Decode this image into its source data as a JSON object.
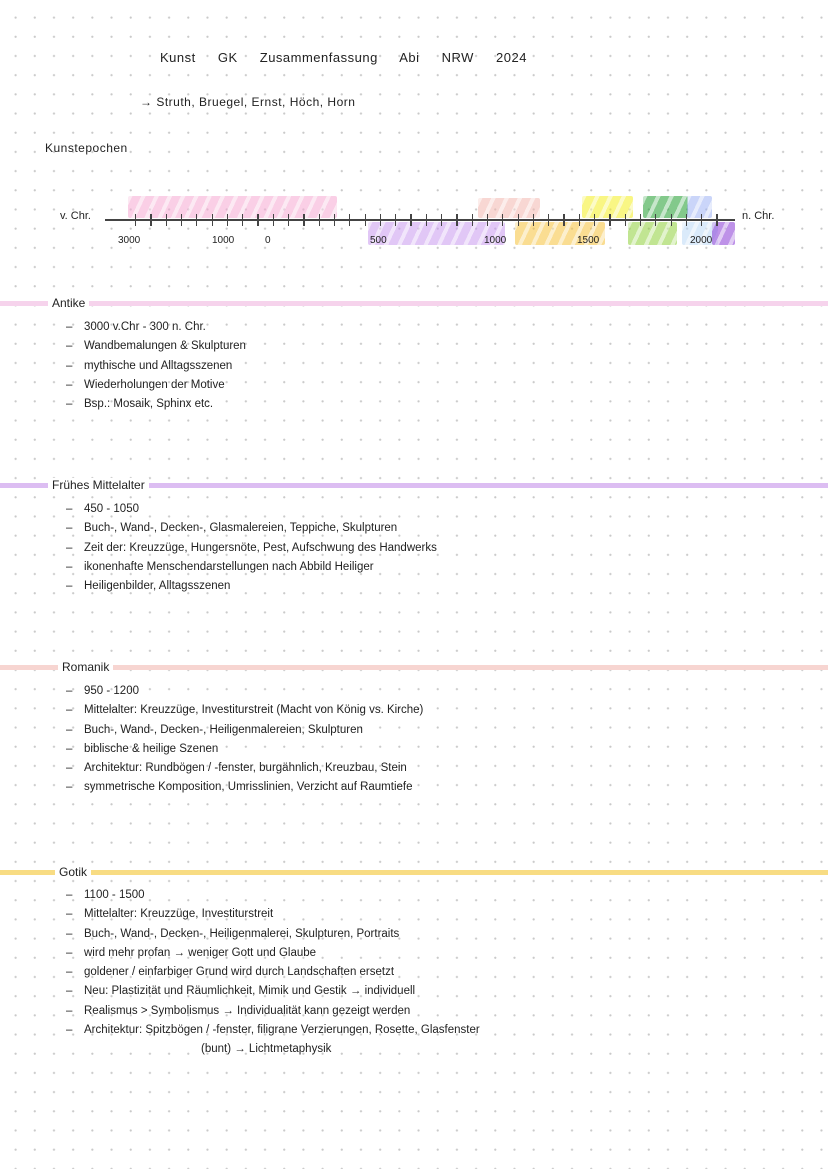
{
  "header": {
    "title": "Kunst GK Zusammenfassung Abi NRW 2024",
    "subtitle": "→ Struth, Bruegel, Ernst, Höch, Horn",
    "section_heading": "Kunstepochen"
  },
  "timeline": {
    "left_label": "v. Chr.",
    "right_label": "n. Chr.",
    "tick_labels": [
      "3000",
      "1000",
      "0",
      "500",
      "1000",
      "1500",
      "2000"
    ],
    "epoch_colors": {
      "antike": "#f6a9d3",
      "fruehes_mittelalter": "#c99af0",
      "romanik": "#f3b8b0",
      "gotik": "#f7c23a",
      "renaissance": "#f5f020",
      "barock": "#1e9e2e",
      "klassizismus": "#8fd13a",
      "romantik": "#9fb4f5",
      "realismus": "#bcd9f7",
      "moderne": "#8a3ad6"
    }
  },
  "sections": [
    {
      "title": "Antike",
      "color": "#f6d3ec",
      "items": [
        "3000 v.Chr - 300 n. Chr.",
        "Wandbemalungen & Skulpturen",
        "mythische und Alltagsszenen",
        "Wiederholungen der Motive",
        "Bsp.: Mosaik, Sphinx etc."
      ]
    },
    {
      "title": "Frühes Mittelalter",
      "color": "#dcbdf2",
      "items": [
        "450 - 1050",
        "Buch-, Wand-, Decken-, Glasmalereien, Teppiche, Skulpturen",
        "Zeit der: Kreuzzüge, Hungersnöte, Pest, Aufschwung des Handwerks",
        "ikonenhafte Menschendarstellungen nach Abbild Heiliger",
        "Heiligenbilder, Alltagsszenen"
      ]
    },
    {
      "title": "Romanik",
      "color": "#f7d5d1",
      "items": [
        "950 - 1200",
        "Mittelalter: Kreuzzüge, Investiturstreit (Macht von König vs. Kirche)",
        "Buch-, Wand-, Decken-, Heiligenmalereien, Skulpturen",
        "biblische & heilige Szenen",
        "Architektur: Rundbögen / -fenster, burgähnlich, Kreuzbau, Stein",
        "symmetrische Komposition, Umrisslinien, Verzicht auf Raumtiefe"
      ]
    },
    {
      "title": "Gotik",
      "color": "#f8dc83",
      "items": [
        "1100 - 1500",
        "Mittelalter: Kreuzzüge, Investiturstreit",
        "Buch-, Wand-, Decken-, Heiligenmalerei, Skulpturen, Portraits",
        "wird mehr profan → weniger Gott und Glaube",
        "goldener / einfarbiger Grund wird durch Landschaften ersetzt",
        "Neu: Plastizität und Räumlichkeit, Mimik und Gestik → individuell",
        "Realismus > Symbolismus → Individualität kann gezeigt werden",
        "Architektur: Spitzbögen / -fenster, filigrane Verzierungen, Rosette, Glasfenster"
      ],
      "continuation": "(bunt) → Lichtmetaphysik"
    }
  ]
}
